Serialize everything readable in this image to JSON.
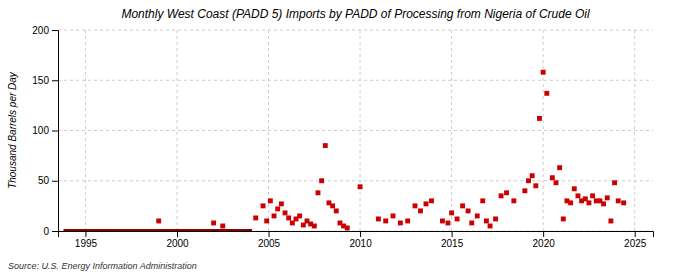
{
  "chart_data": {
    "type": "scatter",
    "title": "Monthly West Coast (PADD 5) Imports by PADD of Processing from Nigeria of Crude Oil",
    "ylabel": "Thousand Barrels per Day",
    "annotations": [
      "Source: U.S. Energy Information Administration"
    ],
    "xlim": [
      1993.5,
      2026
    ],
    "xticks": [
      1995,
      2000,
      2005,
      2010,
      2015,
      2020,
      2025
    ],
    "ylim": [
      0,
      200
    ],
    "yticks": [
      0,
      50,
      100,
      150,
      200
    ],
    "grid": true,
    "series": [
      {
        "type": "scatter",
        "marker": "square",
        "color": "#cc0000",
        "x": [
          1999.0,
          2002.0,
          2002.5,
          2004.3,
          2004.7,
          2004.9,
          2005.1,
          2005.3,
          2005.5,
          2005.7,
          2005.9,
          2006.1,
          2006.3,
          2006.5,
          2006.7,
          2006.9,
          2007.1,
          2007.3,
          2007.5,
          2007.7,
          2007.9,
          2008.1,
          2008.3,
          2008.5,
          2008.7,
          2008.9,
          2009.1,
          2009.3,
          2010.0,
          2011.0,
          2011.4,
          2011.8,
          2012.2,
          2012.6,
          2013.0,
          2013.3,
          2013.6,
          2013.9,
          2014.5,
          2014.8,
          2015.0,
          2015.3,
          2015.6,
          2015.9,
          2016.1,
          2016.4,
          2016.7,
          2016.9,
          2017.1,
          2017.4,
          2017.7,
          2018.0,
          2018.4,
          2019.0,
          2019.2,
          2019.4,
          2019.6,
          2019.8,
          2020.0,
          2020.2,
          2020.5,
          2020.7,
          2020.9,
          2021.1,
          2021.3,
          2021.5,
          2021.7,
          2021.9,
          2022.1,
          2022.3,
          2022.5,
          2022.7,
          2022.9,
          2023.1,
          2023.3,
          2023.5,
          2023.7,
          2023.9,
          2024.1,
          2024.4
        ],
        "values": [
          10,
          8,
          5,
          13,
          25,
          10,
          30,
          15,
          22,
          27,
          18,
          13,
          8,
          12,
          15,
          6,
          10,
          7,
          5,
          38,
          50,
          85,
          28,
          25,
          20,
          8,
          5,
          3,
          44,
          12,
          10,
          15,
          8,
          10,
          25,
          20,
          27,
          30,
          10,
          8,
          18,
          12,
          25,
          20,
          8,
          15,
          30,
          10,
          5,
          12,
          35,
          38,
          30,
          40,
          50,
          55,
          45,
          112,
          158,
          137,
          53,
          48,
          63,
          12,
          30,
          28,
          42,
          35,
          30,
          32,
          28,
          35,
          30,
          30,
          27,
          33,
          10,
          48,
          30,
          28
        ]
      },
      {
        "type": "line",
        "color": "#8b0000",
        "x": [
          1993.8,
          2004.1
        ],
        "values": [
          0,
          0
        ]
      }
    ]
  }
}
